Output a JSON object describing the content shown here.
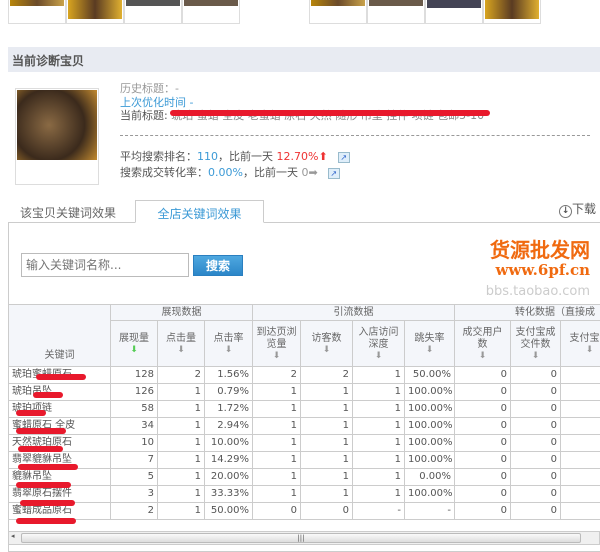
{
  "section_title": "当前诊断宝贝",
  "product": {
    "history_title_label": "历史标题：-",
    "last_optimized_label": "上次优化时间 -",
    "current_title_label": "当前标题:",
    "current_title_visible": "琥珀 蜜蜡 全皮 老蜜蜡 原石 天然 随形 吊坠 挂件 项链 包邮5-10",
    "avg_rank_label": "平均搜索排名：",
    "avg_rank_value": "110",
    "compare_label": "，比前一天",
    "avg_rank_change": "12.70%",
    "avg_rank_trend": "up-arrow",
    "conv_label": "搜索成交转化率：",
    "conv_value": "0.00%",
    "conv_change": "0",
    "conv_trend": "right-arrow"
  },
  "tabs": [
    {
      "label": "该宝贝关键词效果",
      "active": false
    },
    {
      "label": "全店关键词效果",
      "active": true
    }
  ],
  "download_label": "下载",
  "search": {
    "placeholder": "输入关键词名称...",
    "button": "搜索"
  },
  "table": {
    "group_headers": [
      "展现数据",
      "引流数据",
      "转化数据（直接成"
    ],
    "keyword_header": "关键词",
    "columns": [
      "展现量",
      "点击量",
      "点击率",
      "到达页浏览量",
      "访客数",
      "入店访问深度",
      "跳失率",
      "成交用户数",
      "支付宝成交件数",
      "支付宝金"
    ],
    "rows": [
      [
        "琥珀蜜蜡原石",
        "128",
        "2",
        "1.56%",
        "2",
        "2",
        "1",
        "50.00%",
        "0",
        "0"
      ],
      [
        "琥珀吊坠",
        "126",
        "1",
        "0.79%",
        "1",
        "1",
        "1",
        "100.00%",
        "0",
        "0"
      ],
      [
        "琥珀项链",
        "58",
        "1",
        "1.72%",
        "1",
        "1",
        "1",
        "100.00%",
        "0",
        "0"
      ],
      [
        "蜜蜡原石 全皮",
        "34",
        "1",
        "2.94%",
        "1",
        "1",
        "1",
        "100.00%",
        "0",
        "0"
      ],
      [
        "天然琥珀原石",
        "10",
        "1",
        "10.00%",
        "1",
        "1",
        "1",
        "100.00%",
        "0",
        "0"
      ],
      [
        "翡翠貔貅吊坠",
        "7",
        "1",
        "14.29%",
        "1",
        "1",
        "1",
        "100.00%",
        "0",
        "0"
      ],
      [
        "貔貅吊坠",
        "5",
        "1",
        "20.00%",
        "1",
        "1",
        "1",
        "0.00%",
        "0",
        "0"
      ],
      [
        "翡翠原石摆件",
        "3",
        "1",
        "33.33%",
        "1",
        "1",
        "1",
        "100.00%",
        "0",
        "0"
      ],
      [
        "蜜蜡成品原石",
        "2",
        "1",
        "50.00%",
        "0",
        "0",
        "-",
        "-",
        "0",
        "0"
      ]
    ]
  },
  "watermark": {
    "line1": "货源批发网",
    "line2": "www.6pf.cn",
    "line3": "bbs.taobao.com"
  },
  "colors": {
    "accent": "#3c9ad6",
    "up": "#ee3333",
    "header_bg": "#e8ebf2"
  }
}
